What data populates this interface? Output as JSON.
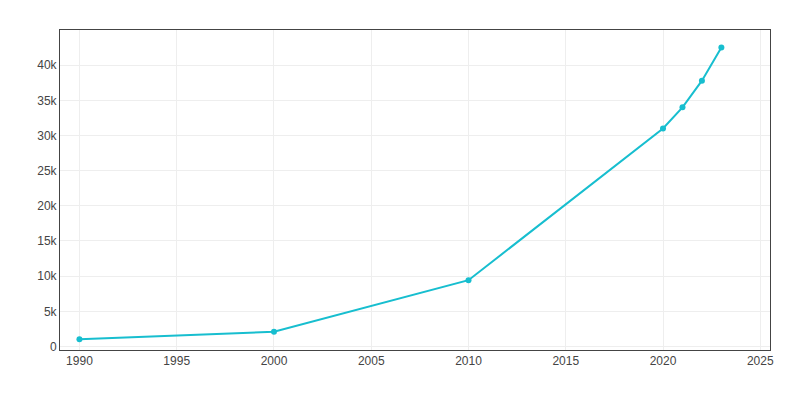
{
  "chart_data": {
    "type": "line",
    "x": [
      1990,
      2000,
      2010,
      2020,
      2021,
      2022,
      2023
    ],
    "values": [
      1018,
      2100,
      9423,
      31000,
      34000,
      37800,
      42500
    ],
    "color": "#17BECF",
    "marker": "circle",
    "line_style": "solid",
    "xlim": [
      1989,
      2025.5
    ],
    "ylim": [
      -500,
      45000
    ],
    "xticks": [
      1990,
      1995,
      2000,
      2005,
      2010,
      2015,
      2020,
      2025
    ],
    "yticks": [
      0,
      {
        "value": 5000,
        "label": "5k"
      },
      {
        "value": 10000,
        "label": "10k"
      },
      {
        "value": 15000,
        "label": "15k"
      },
      {
        "value": 20000,
        "label": "20k"
      },
      {
        "value": 25000,
        "label": "25k"
      },
      {
        "value": 30000,
        "label": "30k"
      },
      {
        "value": 35000,
        "label": "35k"
      },
      {
        "value": 40000,
        "label": "40k"
      }
    ],
    "grid": true
  }
}
